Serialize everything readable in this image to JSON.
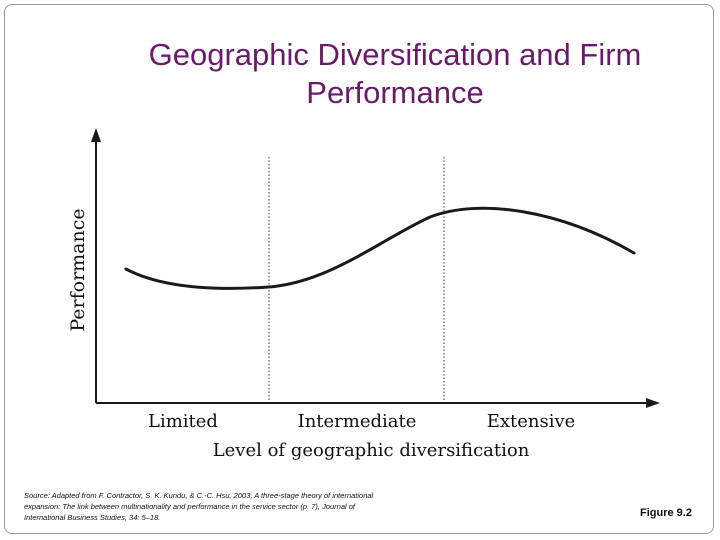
{
  "slide": {
    "title": "Geographic Diversification and Firm Performance",
    "source": "Source: Adapted from F. Contractor, S. K. Kundu, & C.-C. Hsu, 2003, A three-stage theory of international expansion: The link between multinationality and performance in the service sector (p. 7), Journal of International Business Studies, 34: 5–18.",
    "figure_label": "Figure 9.2"
  },
  "diagram": {
    "ylabel": "Performance",
    "xlabel": "Level of geographic diversification",
    "categories": [
      "Limited",
      "Intermediate",
      "Extensive"
    ],
    "colors": {
      "title": "#6a1a6a",
      "line": "#1a1a1a",
      "axis": "#1a1a1a"
    }
  }
}
